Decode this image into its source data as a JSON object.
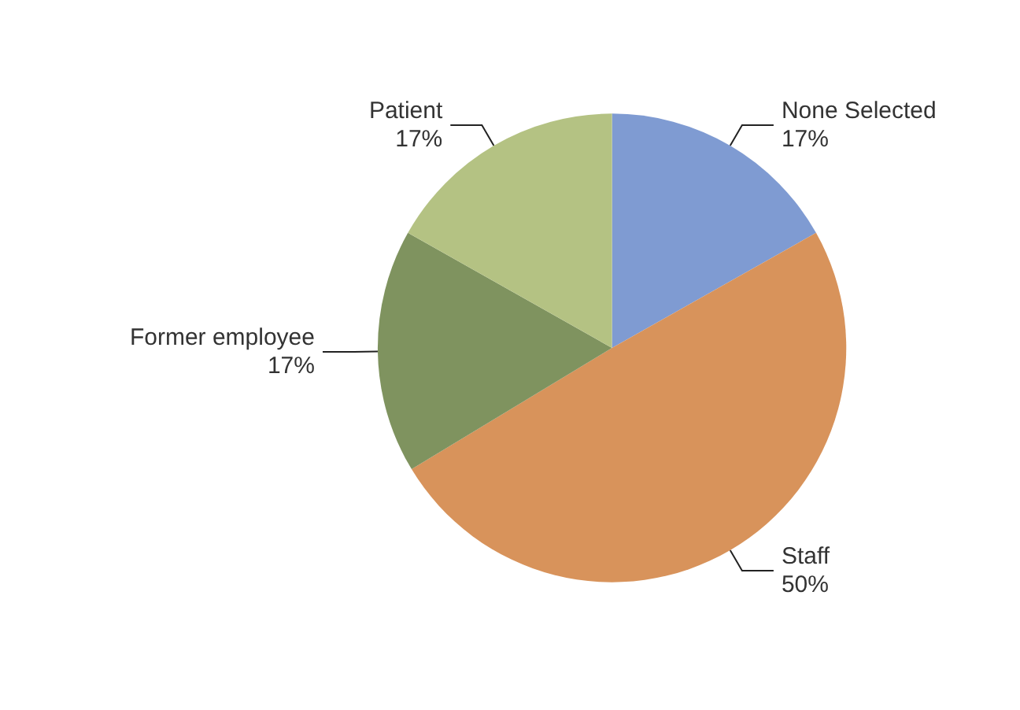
{
  "chart_data": {
    "type": "pie",
    "categories": [
      "None Selected",
      "Staff",
      "Former employee",
      "Patient"
    ],
    "values": [
      17,
      50,
      17,
      17
    ],
    "value_labels": [
      "17%",
      "50%",
      "17%",
      "17%"
    ],
    "colors": [
      "#7f9bd2",
      "#d8935b",
      "#7f935f",
      "#b4c283"
    ],
    "legend": false
  }
}
